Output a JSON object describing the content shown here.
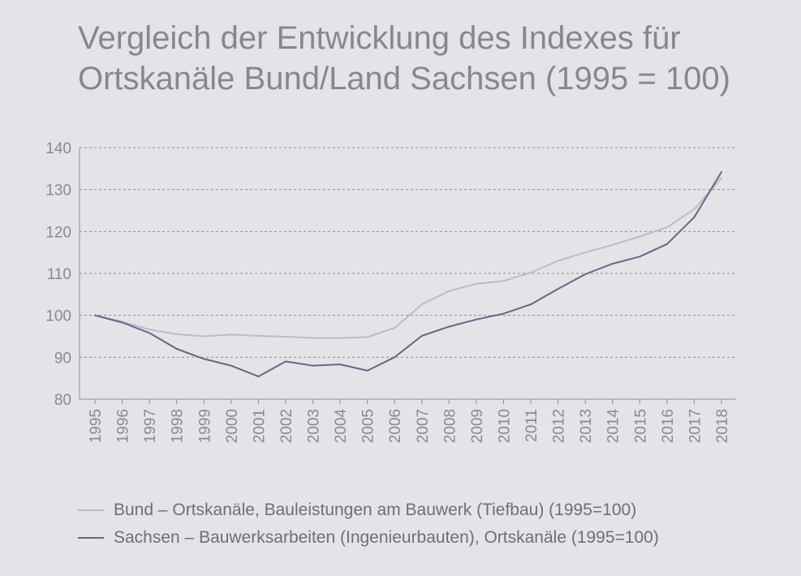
{
  "chart_data": {
    "type": "line",
    "title_line1": "Vergleich der Entwicklung des Indexes für",
    "title_line2": "Ortskanäle Bund/Land Sachsen (1995 = 100)",
    "xlabel": "",
    "ylabel": "",
    "x": [
      "1995",
      "1996",
      "1997",
      "1998",
      "1999",
      "2000",
      "2001",
      "2002",
      "2003",
      "2004",
      "2005",
      "2006",
      "2007",
      "2008",
      "2009",
      "2010",
      "2011",
      "2012",
      "2013",
      "2014",
      "2015",
      "2016",
      "2017",
      "2018"
    ],
    "ylim": [
      80,
      140
    ],
    "yticks": [
      80,
      90,
      100,
      110,
      120,
      130,
      140
    ],
    "grid": true,
    "legend_position": "bottom",
    "series": [
      {
        "name": "Bund – Ortskanäle, Bauleistungen am Bauwerk (Tiefbau) (1995=100)",
        "color": "#bcbac8",
        "values": [
          100,
          98.5,
          96.6,
          95.5,
          95.0,
          95.4,
          95.1,
          94.9,
          94.6,
          94.6,
          94.8,
          97.0,
          102.6,
          105.8,
          107.5,
          108.2,
          110.2,
          113.0,
          115.0,
          116.8,
          118.8,
          121.0,
          125.3,
          132.8
        ]
      },
      {
        "name": "Sachsen – Bauwerksarbeiten (Ingenieurbauten), Ortskanäle (1995=100)",
        "color": "#6a6485",
        "values": [
          100,
          98.3,
          95.8,
          92.0,
          89.6,
          88.0,
          85.4,
          89.0,
          88.0,
          88.3,
          86.8,
          90.0,
          95.1,
          97.3,
          99.0,
          100.4,
          102.6,
          106.3,
          109.8,
          112.3,
          114.0,
          117.0,
          123.4,
          134.2
        ]
      }
    ]
  }
}
